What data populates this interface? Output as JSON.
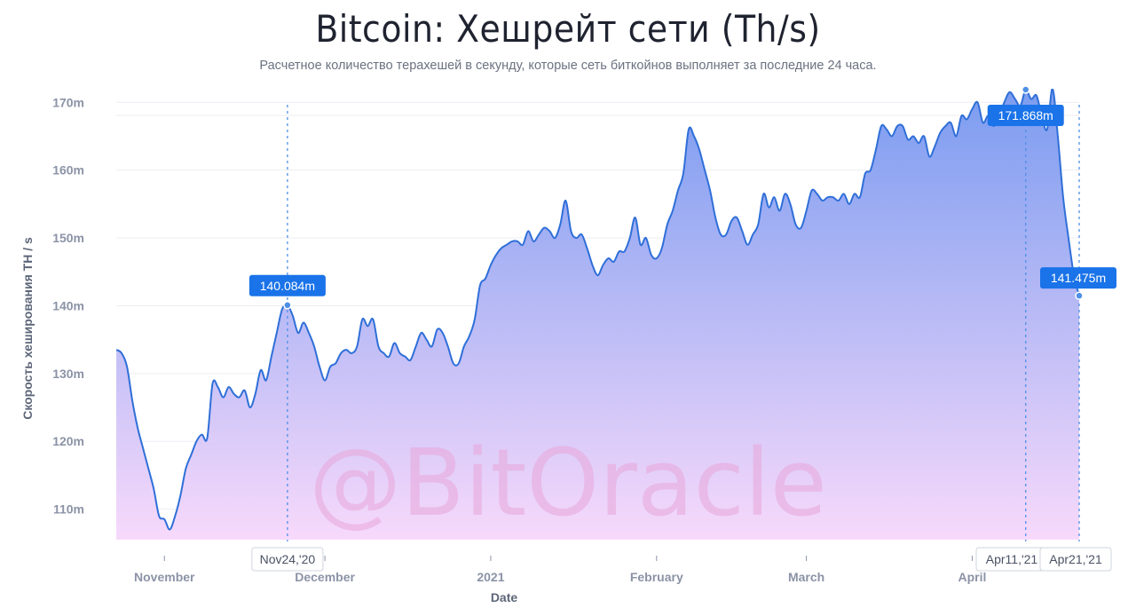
{
  "header": {
    "title": "Bitcoin: Хешрейт сети (Th/s)",
    "subtitle": "Расчетное количество терахешей в секунду, которые сеть биткойнов выполняет за последние 24 часа."
  },
  "watermark": "@BitOracle",
  "colors": {
    "line": "#2f6fd8",
    "fill_top": "#7b9cf0",
    "fill_bottom": "#f7d9fb",
    "callout": "#1a73e8",
    "grid": "#eceef3"
  },
  "chart_data": {
    "type": "area",
    "title": "Bitcoin: Хешрейт сети (Th/s)",
    "xlabel": "Date",
    "ylabel": "Скорость хеширования TH / s",
    "xlim": [
      "2020-10-23",
      "2021-04-21"
    ],
    "ylim": [
      105.5,
      172
    ],
    "y_ticks": [
      110,
      120,
      130,
      140,
      150,
      160,
      170
    ],
    "y_tick_labels": [
      "110m",
      "120m",
      "130m",
      "140m",
      "150m",
      "160m",
      "170m"
    ],
    "x_ticks": [
      {
        "date": "2020-11-01",
        "label": "November"
      },
      {
        "date": "2020-12-01",
        "label": "December"
      },
      {
        "date": "2021-01-01",
        "label": "2021"
      },
      {
        "date": "2021-02-01",
        "label": "February"
      },
      {
        "date": "2021-03-01",
        "label": "March"
      },
      {
        "date": "2021-04-01",
        "label": "April"
      }
    ],
    "grid": true,
    "series": [
      {
        "values": [
          [
            "2020-10-23",
            133.5
          ],
          [
            "2020-10-24",
            133.0
          ],
          [
            "2020-10-25",
            131.0
          ],
          [
            "2020-10-26",
            126.0
          ],
          [
            "2020-10-27",
            122.0
          ],
          [
            "2020-10-28",
            119.0
          ],
          [
            "2020-10-29",
            116.0
          ],
          [
            "2020-10-30",
            113.0
          ],
          [
            "2020-10-31",
            109.0
          ],
          [
            "2020-11-01",
            108.5
          ],
          [
            "2020-11-02",
            107.0
          ],
          [
            "2020-11-03",
            109.0
          ],
          [
            "2020-11-04",
            112.0
          ],
          [
            "2020-11-05",
            116.0
          ],
          [
            "2020-11-06",
            118.0
          ],
          [
            "2020-11-07",
            120.0
          ],
          [
            "2020-11-08",
            121.0
          ],
          [
            "2020-11-09",
            120.5
          ],
          [
            "2020-11-10",
            128.5
          ],
          [
            "2020-11-11",
            128.0
          ],
          [
            "2020-11-12",
            126.5
          ],
          [
            "2020-11-13",
            128.0
          ],
          [
            "2020-11-14",
            127.0
          ],
          [
            "2020-11-15",
            126.5
          ],
          [
            "2020-11-16",
            127.5
          ],
          [
            "2020-11-17",
            125.0
          ],
          [
            "2020-11-18",
            127.0
          ],
          [
            "2020-11-19",
            130.5
          ],
          [
            "2020-11-20",
            129.0
          ],
          [
            "2020-11-21",
            132.5
          ],
          [
            "2020-11-22",
            136.0
          ],
          [
            "2020-11-23",
            139.5
          ],
          [
            "2020-11-24",
            140.084
          ],
          [
            "2020-11-25",
            138.5
          ],
          [
            "2020-11-26",
            136.0
          ],
          [
            "2020-11-27",
            137.5
          ],
          [
            "2020-11-28",
            136.0
          ],
          [
            "2020-11-29",
            134.0
          ],
          [
            "2020-11-30",
            131.0
          ],
          [
            "2020-12-01",
            129.0
          ],
          [
            "2020-12-02",
            131.0
          ],
          [
            "2020-12-03",
            131.5
          ],
          [
            "2020-12-04",
            133.0
          ],
          [
            "2020-12-05",
            133.5
          ],
          [
            "2020-12-06",
            133.0
          ],
          [
            "2020-12-07",
            134.0
          ],
          [
            "2020-12-08",
            138.0
          ],
          [
            "2020-12-09",
            137.0
          ],
          [
            "2020-12-10",
            138.0
          ],
          [
            "2020-12-11",
            134.0
          ],
          [
            "2020-12-12",
            133.0
          ],
          [
            "2020-12-13",
            132.5
          ],
          [
            "2020-12-14",
            134.5
          ],
          [
            "2020-12-15",
            133.0
          ],
          [
            "2020-12-16",
            132.5
          ],
          [
            "2020-12-17",
            132.0
          ],
          [
            "2020-12-18",
            134.0
          ],
          [
            "2020-12-19",
            136.0
          ],
          [
            "2020-12-20",
            135.0
          ],
          [
            "2020-12-21",
            134.0
          ],
          [
            "2020-12-22",
            136.5
          ],
          [
            "2020-12-23",
            136.0
          ],
          [
            "2020-12-24",
            134.0
          ],
          [
            "2020-12-25",
            131.5
          ],
          [
            "2020-12-26",
            131.5
          ],
          [
            "2020-12-27",
            134.0
          ],
          [
            "2020-12-28",
            135.5
          ],
          [
            "2020-12-29",
            138.0
          ],
          [
            "2020-12-30",
            143.0
          ],
          [
            "2020-12-31",
            144.0
          ],
          [
            "2021-01-01",
            146.0
          ],
          [
            "2021-01-02",
            147.5
          ],
          [
            "2021-01-03",
            148.5
          ],
          [
            "2021-01-04",
            149.0
          ],
          [
            "2021-01-05",
            149.5
          ],
          [
            "2021-01-06",
            149.5
          ],
          [
            "2021-01-07",
            149.0
          ],
          [
            "2021-01-08",
            151.0
          ],
          [
            "2021-01-09",
            149.5
          ],
          [
            "2021-01-10",
            150.5
          ],
          [
            "2021-01-11",
            151.5
          ],
          [
            "2021-01-12",
            151.0
          ],
          [
            "2021-01-13",
            150.0
          ],
          [
            "2021-01-14",
            152.0
          ],
          [
            "2021-01-15",
            155.5
          ],
          [
            "2021-01-16",
            151.0
          ],
          [
            "2021-01-17",
            150.0
          ],
          [
            "2021-01-18",
            150.5
          ],
          [
            "2021-01-19",
            148.5
          ],
          [
            "2021-01-20",
            146.0
          ],
          [
            "2021-01-21",
            144.5
          ],
          [
            "2021-01-22",
            146.0
          ],
          [
            "2021-01-23",
            147.0
          ],
          [
            "2021-01-24",
            146.5
          ],
          [
            "2021-01-25",
            148.0
          ],
          [
            "2021-01-26",
            148.0
          ],
          [
            "2021-01-27",
            150.0
          ],
          [
            "2021-01-28",
            153.0
          ],
          [
            "2021-01-29",
            149.0
          ],
          [
            "2021-01-30",
            150.0
          ],
          [
            "2021-01-31",
            147.5
          ],
          [
            "2021-02-01",
            147.0
          ],
          [
            "2021-02-02",
            148.5
          ],
          [
            "2021-02-03",
            152.0
          ],
          [
            "2021-02-04",
            154.0
          ],
          [
            "2021-02-05",
            157.0
          ],
          [
            "2021-02-06",
            159.5
          ],
          [
            "2021-02-07",
            166.0
          ],
          [
            "2021-02-08",
            165.0
          ],
          [
            "2021-02-09",
            163.0
          ],
          [
            "2021-02-10",
            160.0
          ],
          [
            "2021-02-11",
            157.0
          ],
          [
            "2021-02-12",
            153.0
          ],
          [
            "2021-02-13",
            150.5
          ],
          [
            "2021-02-14",
            150.5
          ],
          [
            "2021-02-15",
            152.5
          ],
          [
            "2021-02-16",
            153.0
          ],
          [
            "2021-02-17",
            151.0
          ],
          [
            "2021-02-18",
            149.0
          ],
          [
            "2021-02-19",
            150.5
          ],
          [
            "2021-02-20",
            152.0
          ],
          [
            "2021-02-21",
            156.5
          ],
          [
            "2021-02-22",
            154.5
          ],
          [
            "2021-02-23",
            156.0
          ],
          [
            "2021-02-24",
            154.0
          ],
          [
            "2021-02-25",
            156.5
          ],
          [
            "2021-02-26",
            155.0
          ],
          [
            "2021-02-27",
            152.0
          ],
          [
            "2021-02-28",
            151.5
          ],
          [
            "2021-03-01",
            154.0
          ],
          [
            "2021-03-02",
            157.0
          ],
          [
            "2021-03-03",
            156.5
          ],
          [
            "2021-03-04",
            155.5
          ],
          [
            "2021-03-05",
            156.0
          ],
          [
            "2021-03-06",
            156.0
          ],
          [
            "2021-03-07",
            155.5
          ],
          [
            "2021-03-08",
            156.5
          ],
          [
            "2021-03-09",
            155.0
          ],
          [
            "2021-03-10",
            156.5
          ],
          [
            "2021-03-11",
            156.0
          ],
          [
            "2021-03-12",
            159.5
          ],
          [
            "2021-03-13",
            160.0
          ],
          [
            "2021-03-14",
            163.0
          ],
          [
            "2021-03-15",
            166.5
          ],
          [
            "2021-03-16",
            166.0
          ],
          [
            "2021-03-17",
            165.0
          ],
          [
            "2021-03-18",
            166.5
          ],
          [
            "2021-03-19",
            166.5
          ],
          [
            "2021-03-20",
            164.5
          ],
          [
            "2021-03-21",
            165.0
          ],
          [
            "2021-03-22",
            164.0
          ],
          [
            "2021-03-23",
            165.0
          ],
          [
            "2021-03-24",
            162.0
          ],
          [
            "2021-03-25",
            163.5
          ],
          [
            "2021-03-26",
            165.5
          ],
          [
            "2021-03-27",
            166.5
          ],
          [
            "2021-03-28",
            167.0
          ],
          [
            "2021-03-29",
            165.0
          ],
          [
            "2021-03-30",
            168.0
          ],
          [
            "2021-03-31",
            167.5
          ],
          [
            "2021-04-01",
            169.0
          ],
          [
            "2021-04-02",
            170.0
          ],
          [
            "2021-04-03",
            167.0
          ],
          [
            "2021-04-04",
            168.0
          ],
          [
            "2021-04-05",
            166.5
          ],
          [
            "2021-04-06",
            168.0
          ],
          [
            "2021-04-07",
            170.0
          ],
          [
            "2021-04-08",
            171.5
          ],
          [
            "2021-04-09",
            170.5
          ],
          [
            "2021-04-10",
            169.5
          ],
          [
            "2021-04-11",
            171.868
          ],
          [
            "2021-04-12",
            170.5
          ],
          [
            "2021-04-13",
            171.0
          ],
          [
            "2021-04-14",
            168.0
          ],
          [
            "2021-04-15",
            166.0
          ],
          [
            "2021-04-16",
            172.0
          ],
          [
            "2021-04-17",
            165.0
          ],
          [
            "2021-04-18",
            156.0
          ],
          [
            "2021-04-19",
            150.0
          ],
          [
            "2021-04-20",
            144.5
          ],
          [
            "2021-04-21",
            141.475
          ]
        ]
      }
    ],
    "annotations": [
      {
        "date": "2020-11-24",
        "value": 140.084,
        "label": "140.084m",
        "x_label": "Nov24,'20"
      },
      {
        "date": "2021-04-11",
        "value": 171.868,
        "label": "171.868m",
        "x_label": "Apr11,'21"
      },
      {
        "date": "2021-04-21",
        "value": 141.475,
        "label": "141.475m",
        "x_label": "Apr21,'21"
      }
    ]
  }
}
